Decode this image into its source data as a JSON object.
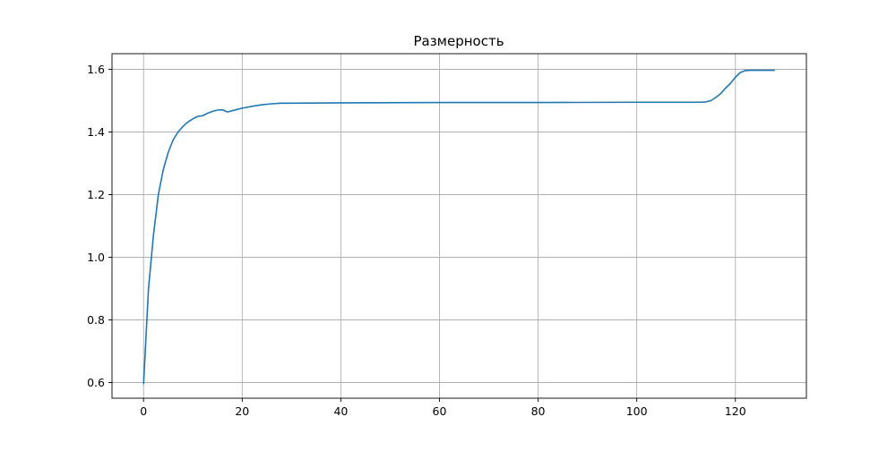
{
  "chart_data": {
    "type": "line",
    "title": "Размерность",
    "xlabel": "",
    "ylabel": "",
    "xlim": [
      -6.4,
      134.4
    ],
    "ylim": [
      0.55,
      1.65
    ],
    "grid": true,
    "xticks": [
      0,
      20,
      40,
      60,
      80,
      100,
      120
    ],
    "yticks": [
      0.6,
      0.8,
      1.0,
      1.2,
      1.4,
      1.6
    ],
    "xtick_labels": [
      "0",
      "20",
      "40",
      "60",
      "80",
      "100",
      "120"
    ],
    "ytick_labels": [
      "0.6",
      "0.8",
      "1.0",
      "1.2",
      "1.4",
      "1.6"
    ],
    "series": [
      {
        "color": "#1f77b4",
        "x": [
          0,
          1,
          2,
          3,
          4,
          5,
          6,
          7,
          8,
          9,
          10,
          11,
          12,
          13,
          14,
          15,
          16,
          17,
          18,
          20,
          22,
          24,
          26,
          28,
          30,
          40,
          60,
          80,
          100,
          110,
          113,
          114,
          115,
          116,
          117,
          118,
          119,
          120,
          121,
          122,
          123,
          125,
          128
        ],
        "y": [
          0.595,
          0.9,
          1.07,
          1.2,
          1.28,
          1.335,
          1.375,
          1.4,
          1.418,
          1.432,
          1.442,
          1.45,
          1.452,
          1.46,
          1.466,
          1.47,
          1.471,
          1.464,
          1.468,
          1.476,
          1.482,
          1.487,
          1.49,
          1.492,
          1.492,
          1.493,
          1.494,
          1.494,
          1.495,
          1.495,
          1.495,
          1.496,
          1.5,
          1.51,
          1.522,
          1.54,
          1.555,
          1.575,
          1.59,
          1.596,
          1.597,
          1.597,
          1.597
        ]
      }
    ]
  }
}
